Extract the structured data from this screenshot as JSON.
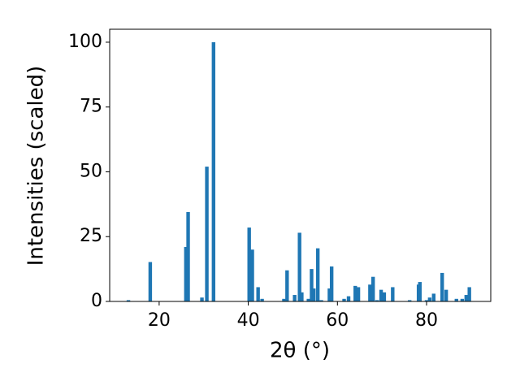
{
  "chart_data": {
    "type": "bar",
    "xlabel": "2θ (°)",
    "ylabel": "Intensities (scaled)",
    "x": [
      13.1,
      18.0,
      26.0,
      26.5,
      29.6,
      30.7,
      32.2,
      40.2,
      40.9,
      42.2,
      43.1,
      48.0,
      48.7,
      50.4,
      51.5,
      52.0,
      53.5,
      54.2,
      54.7,
      55.6,
      56.4,
      58.2,
      58.7,
      61.5,
      62.5,
      64.0,
      64.7,
      67.3,
      68.0,
      68.9,
      69.8,
      70.5,
      72.4,
      76.2,
      78.2,
      78.5,
      80.0,
      80.7,
      81.6,
      83.5,
      84.4,
      86.7,
      88.0,
      88.9,
      89.6
    ],
    "values": [
      0.5,
      15.2,
      21,
      34.5,
      1.5,
      52,
      100,
      28.5,
      20,
      5.5,
      1,
      1,
      12,
      2.5,
      26.5,
      3.5,
      1,
      12.5,
      5,
      20.5,
      0.5,
      5,
      13.5,
      1,
      2,
      6,
      5.5,
      6.5,
      9.5,
      0.5,
      4.5,
      3.5,
      5.5,
      0.5,
      6.5,
      7.5,
      0.5,
      1.5,
      3,
      11,
      4.5,
      1,
      1,
      2.5,
      5.5
    ],
    "color": "#1f77b4",
    "xlim": [
      8.9,
      94.4
    ],
    "xticks": [
      20,
      40,
      60,
      80
    ],
    "ylim": [
      0,
      105
    ],
    "yticks": [
      0,
      25,
      50,
      75,
      100
    ]
  }
}
